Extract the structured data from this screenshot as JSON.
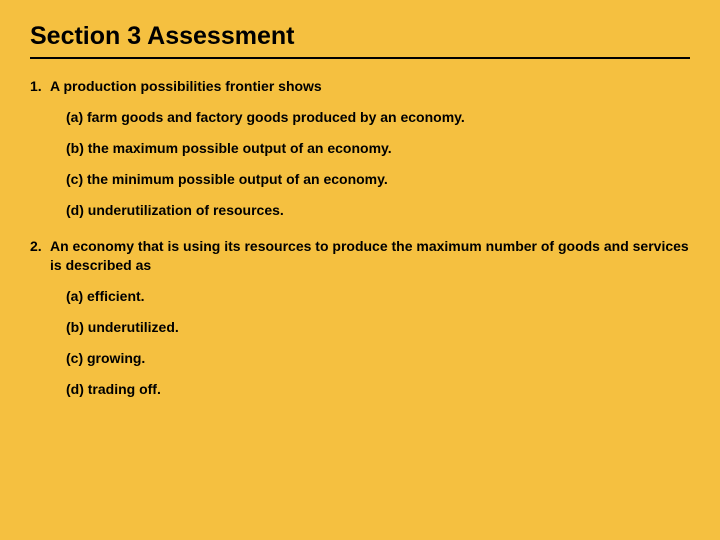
{
  "background_color": "#f5c040",
  "text_color": "#000000",
  "title": "Section 3 Assessment",
  "title_fontsize": 25,
  "body_fontsize": 14,
  "rule_color": "#000000",
  "questions": [
    {
      "number": "1.",
      "stem": "A production possibilities frontier shows",
      "options": [
        "(a) farm goods and factory goods produced by an economy.",
        "(b) the maximum possible output of an economy.",
        "(c) the minimum possible output of an economy.",
        "(d) underutilization of resources."
      ]
    },
    {
      "number": "2.",
      "stem": "An economy that is using its resources to produce the maximum number of goods and services is described as",
      "options": [
        "(a) efficient.",
        "(b) underutilized.",
        "(c) growing.",
        "(d) trading off."
      ]
    }
  ]
}
